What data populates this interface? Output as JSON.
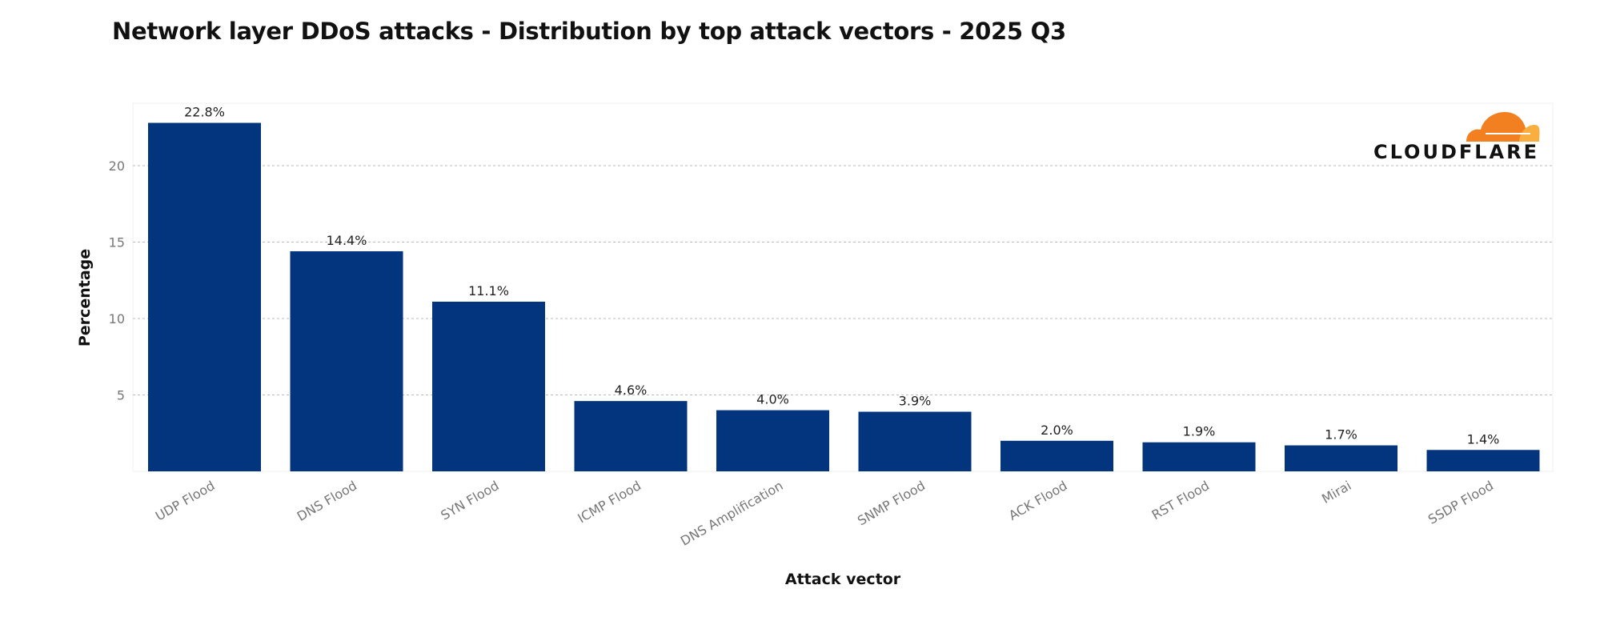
{
  "chart_data": {
    "type": "bar",
    "title": "Network layer DDoS attacks - Distribution by top attack vectors - 2025 Q3",
    "xlabel": "Attack vector",
    "ylabel": "Percentage",
    "categories": [
      "UDP Flood",
      "DNS Flood",
      "SYN Flood",
      "ICMP Flood",
      "DNS Amplification",
      "SNMP Flood",
      "ACK Flood",
      "RST Flood",
      "Mirai",
      "SSDP Flood"
    ],
    "values": [
      22.8,
      14.4,
      11.1,
      4.6,
      4.0,
      3.9,
      2.0,
      1.9,
      1.7,
      1.4
    ],
    "data_labels": [
      "22.8%",
      "14.4%",
      "11.1%",
      "4.6%",
      "4.0%",
      "3.9%",
      "2.0%",
      "1.9%",
      "1.7%",
      "1.4%"
    ],
    "yticks": [
      5,
      10,
      15,
      20
    ],
    "ylim": [
      0,
      24
    ],
    "grid": true,
    "bar_color": "#02357e",
    "logo_colors": [
      "#f38020",
      "#faae40"
    ]
  },
  "logo": {
    "text": "CLOUDFLARE"
  }
}
